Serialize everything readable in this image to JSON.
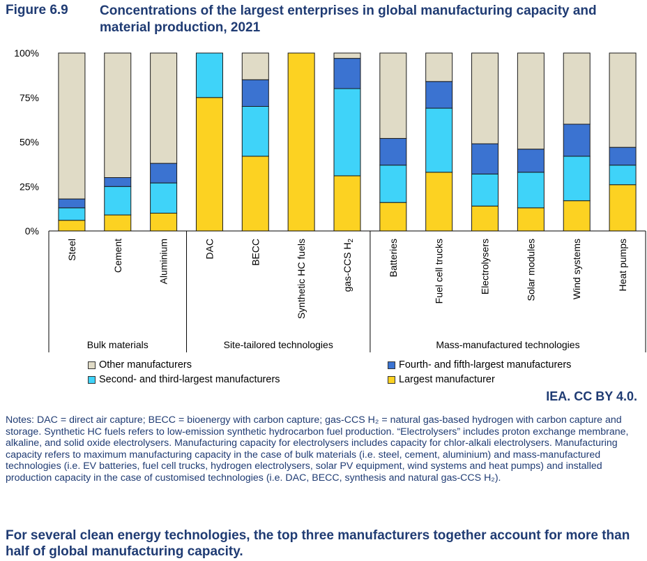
{
  "figure": {
    "label": "Figure 6.9",
    "title": "Concentrations of the largest enterprises in global manufacturing capacity and material production, 2021"
  },
  "credit": "IEA. CC BY 4.0.",
  "notes": "Notes: DAC = direct air capture; BECC = bioenergy with carbon capture; gas-CCS H₂ = natural gas-based hydrogen with carbon capture and storage. Synthetic HC fuels refers to low-emission synthetic hydrocarbon fuel production. “Electrolysers” includes proton exchange membrane, alkaline, and solid oxide electrolysers. Manufacturing capacity for electrolysers includes capacity for chlor-alkali electrolysers. Manufacturing capacity refers to maximum manufacturing capacity in the case of bulk materials (i.e. steel, cement, aluminium) and mass-manufactured technologies (i.e. EV batteries, fuel cell trucks, hydrogen electrolysers, solar PV equipment, wind systems and heat pumps) and installed production capacity in the case of customised technologies (i.e. DAC, BECC, synthesis and natural gas-CCS H₂).",
  "takeaway": "For several clean energy technologies, the top three manufacturers together account for more than half of global manufacturing capacity.",
  "colors": {
    "largest": "#fcd222",
    "second_third": "#3fd3f9",
    "fourth_fifth": "#3b73d1",
    "other": "#e0dbc6"
  },
  "chart_data": {
    "type": "bar",
    "stacked": true,
    "y_tick_labels": [
      "0%",
      "25%",
      "50%",
      "75%",
      "100%"
    ],
    "ylim": [
      0,
      100
    ],
    "grid": false,
    "legend_position": "bottom",
    "categories": [
      "Steel",
      "Cement",
      "Aluminium",
      "DAC",
      "BECC",
      "Synthetic HC fuels",
      "gas-CCS H2",
      "Batteries",
      "Fuel cell trucks",
      "Electrolysers",
      "Solar modules",
      "Wind systems",
      "Heat pumps"
    ],
    "groups": [
      {
        "name": "Bulk materials",
        "categories": [
          "Steel",
          "Cement",
          "Aluminium"
        ]
      },
      {
        "name": "Site-tailored technologies",
        "categories": [
          "DAC",
          "BECC",
          "Synthetic HC fuels",
          "gas-CCS H2"
        ]
      },
      {
        "name": "Mass-manufactured technologies",
        "categories": [
          "Batteries",
          "Fuel cell trucks",
          "Electrolysers",
          "Solar modules",
          "Wind systems",
          "Heat pumps"
        ]
      }
    ],
    "series": [
      {
        "name": "Largest manufacturer",
        "color_key": "largest",
        "values": [
          6,
          9,
          10,
          75,
          42,
          100,
          31,
          16,
          33,
          14,
          13,
          17,
          26
        ]
      },
      {
        "name": "Second- and third-largest manufacturers",
        "color_key": "second_third",
        "values": [
          7,
          16,
          17,
          25,
          28,
          0,
          49,
          21,
          36,
          18,
          20,
          25,
          11
        ]
      },
      {
        "name": "Fourth- and fifth-largest manufacturers",
        "color_key": "fourth_fifth",
        "values": [
          5,
          5,
          11,
          0,
          15,
          0,
          17,
          15,
          15,
          17,
          13,
          18,
          10
        ]
      },
      {
        "name": "Other manufacturers",
        "color_key": "other",
        "values": [
          82,
          70,
          62,
          0,
          15,
          0,
          3,
          48,
          16,
          51,
          54,
          40,
          53
        ]
      }
    ]
  }
}
